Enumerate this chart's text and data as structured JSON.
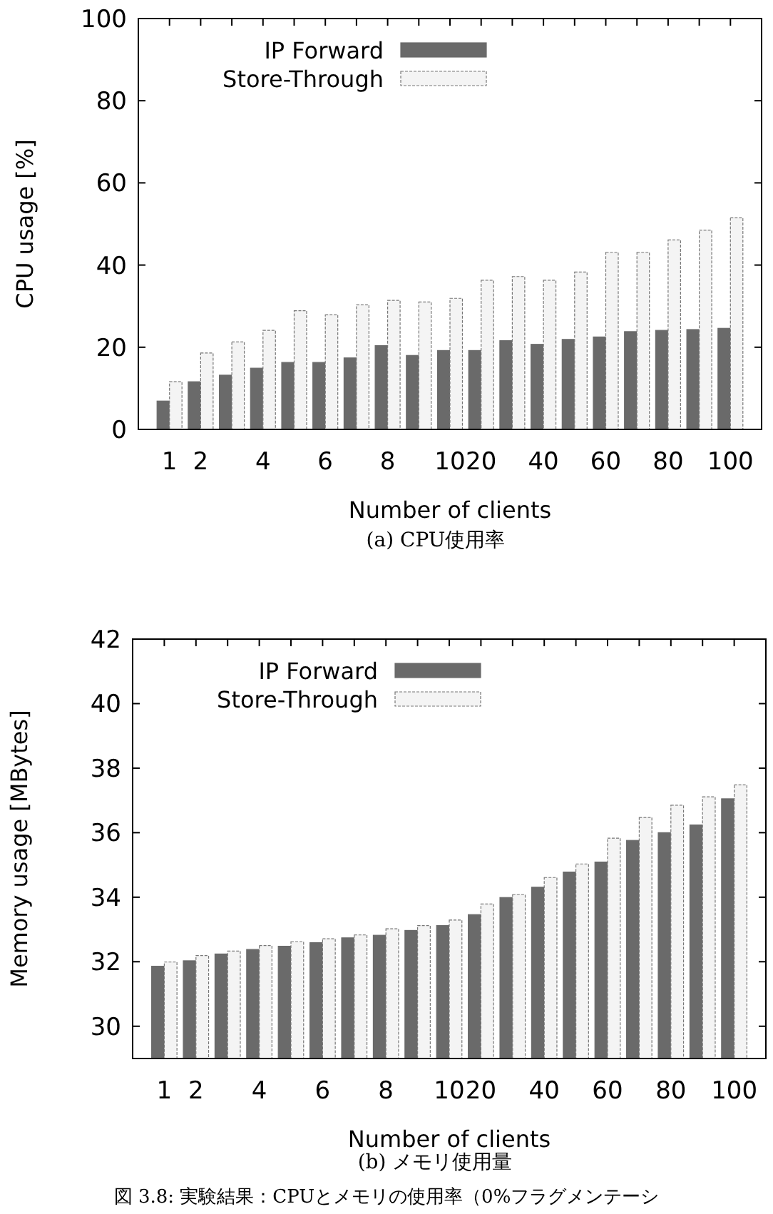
{
  "chart_data": [
    {
      "type": "bar",
      "ylabel": "CPU usage [%]",
      "xlabel": "Number of clients",
      "legend": "top left",
      "categories": [
        "1",
        "2",
        null,
        "4",
        null,
        "6",
        null,
        "8",
        null,
        "10",
        "20",
        null,
        "40",
        null,
        "60",
        null,
        "80",
        null,
        "100"
      ],
      "ylim": [
        0,
        100
      ],
      "yticks": [
        0,
        20,
        40,
        60,
        80,
        100
      ],
      "series": [
        {
          "name": "IP Forward",
          "color": "#6a6a6a",
          "values": [
            6.9,
            11.6,
            13.2,
            14.9,
            16.3,
            16.3,
            17.4,
            20.4,
            18.0,
            19.2,
            19.2,
            21.6,
            20.7,
            21.9,
            22.5,
            23.8,
            24.1,
            24.3,
            24.6
          ]
        },
        {
          "name": "Store-Through",
          "color": "#f4f4f4",
          "values": [
            11.6,
            18.6,
            21.3,
            24.1,
            28.9,
            27.9,
            30.3,
            31.4,
            31.0,
            31.9,
            36.3,
            37.2,
            36.3,
            38.3,
            43.1,
            43.1,
            46.1,
            48.5,
            51.5
          ]
        }
      ],
      "annotations": [
        "(a) CPU使用率"
      ]
    },
    {
      "type": "bar",
      "ylabel": "Memory usage [MBytes]",
      "xlabel": "Number of clients",
      "legend": "top left",
      "categories": [
        "1",
        "2",
        null,
        "4",
        null,
        "6",
        null,
        "8",
        null,
        "10",
        "20",
        null,
        "40",
        null,
        "60",
        null,
        "80",
        null,
        "100"
      ],
      "ylim": [
        29,
        42
      ],
      "yticks": [
        30,
        32,
        34,
        36,
        38,
        40,
        42
      ],
      "series": [
        {
          "name": "IP Forward",
          "color": "#6a6a6a",
          "values": [
            31.86,
            32.03,
            32.24,
            32.38,
            32.48,
            32.59,
            32.74,
            32.82,
            32.97,
            33.12,
            33.46,
            33.99,
            34.31,
            34.78,
            35.09,
            35.76,
            36.0,
            36.24,
            37.05
          ]
        },
        {
          "name": "Store-Through",
          "color": "#f4f4f4",
          "values": [
            31.99,
            32.19,
            32.33,
            32.5,
            32.62,
            32.71,
            32.83,
            33.02,
            33.12,
            33.29,
            33.79,
            34.08,
            34.61,
            35.03,
            35.83,
            36.47,
            36.85,
            37.11,
            37.48
          ]
        }
      ],
      "annotations": [
        "(b) メモリ使用量",
        "図 3.8: 実験結果：CPUとメモリの使用率（0%フラグメンテーシ"
      ]
    }
  ]
}
